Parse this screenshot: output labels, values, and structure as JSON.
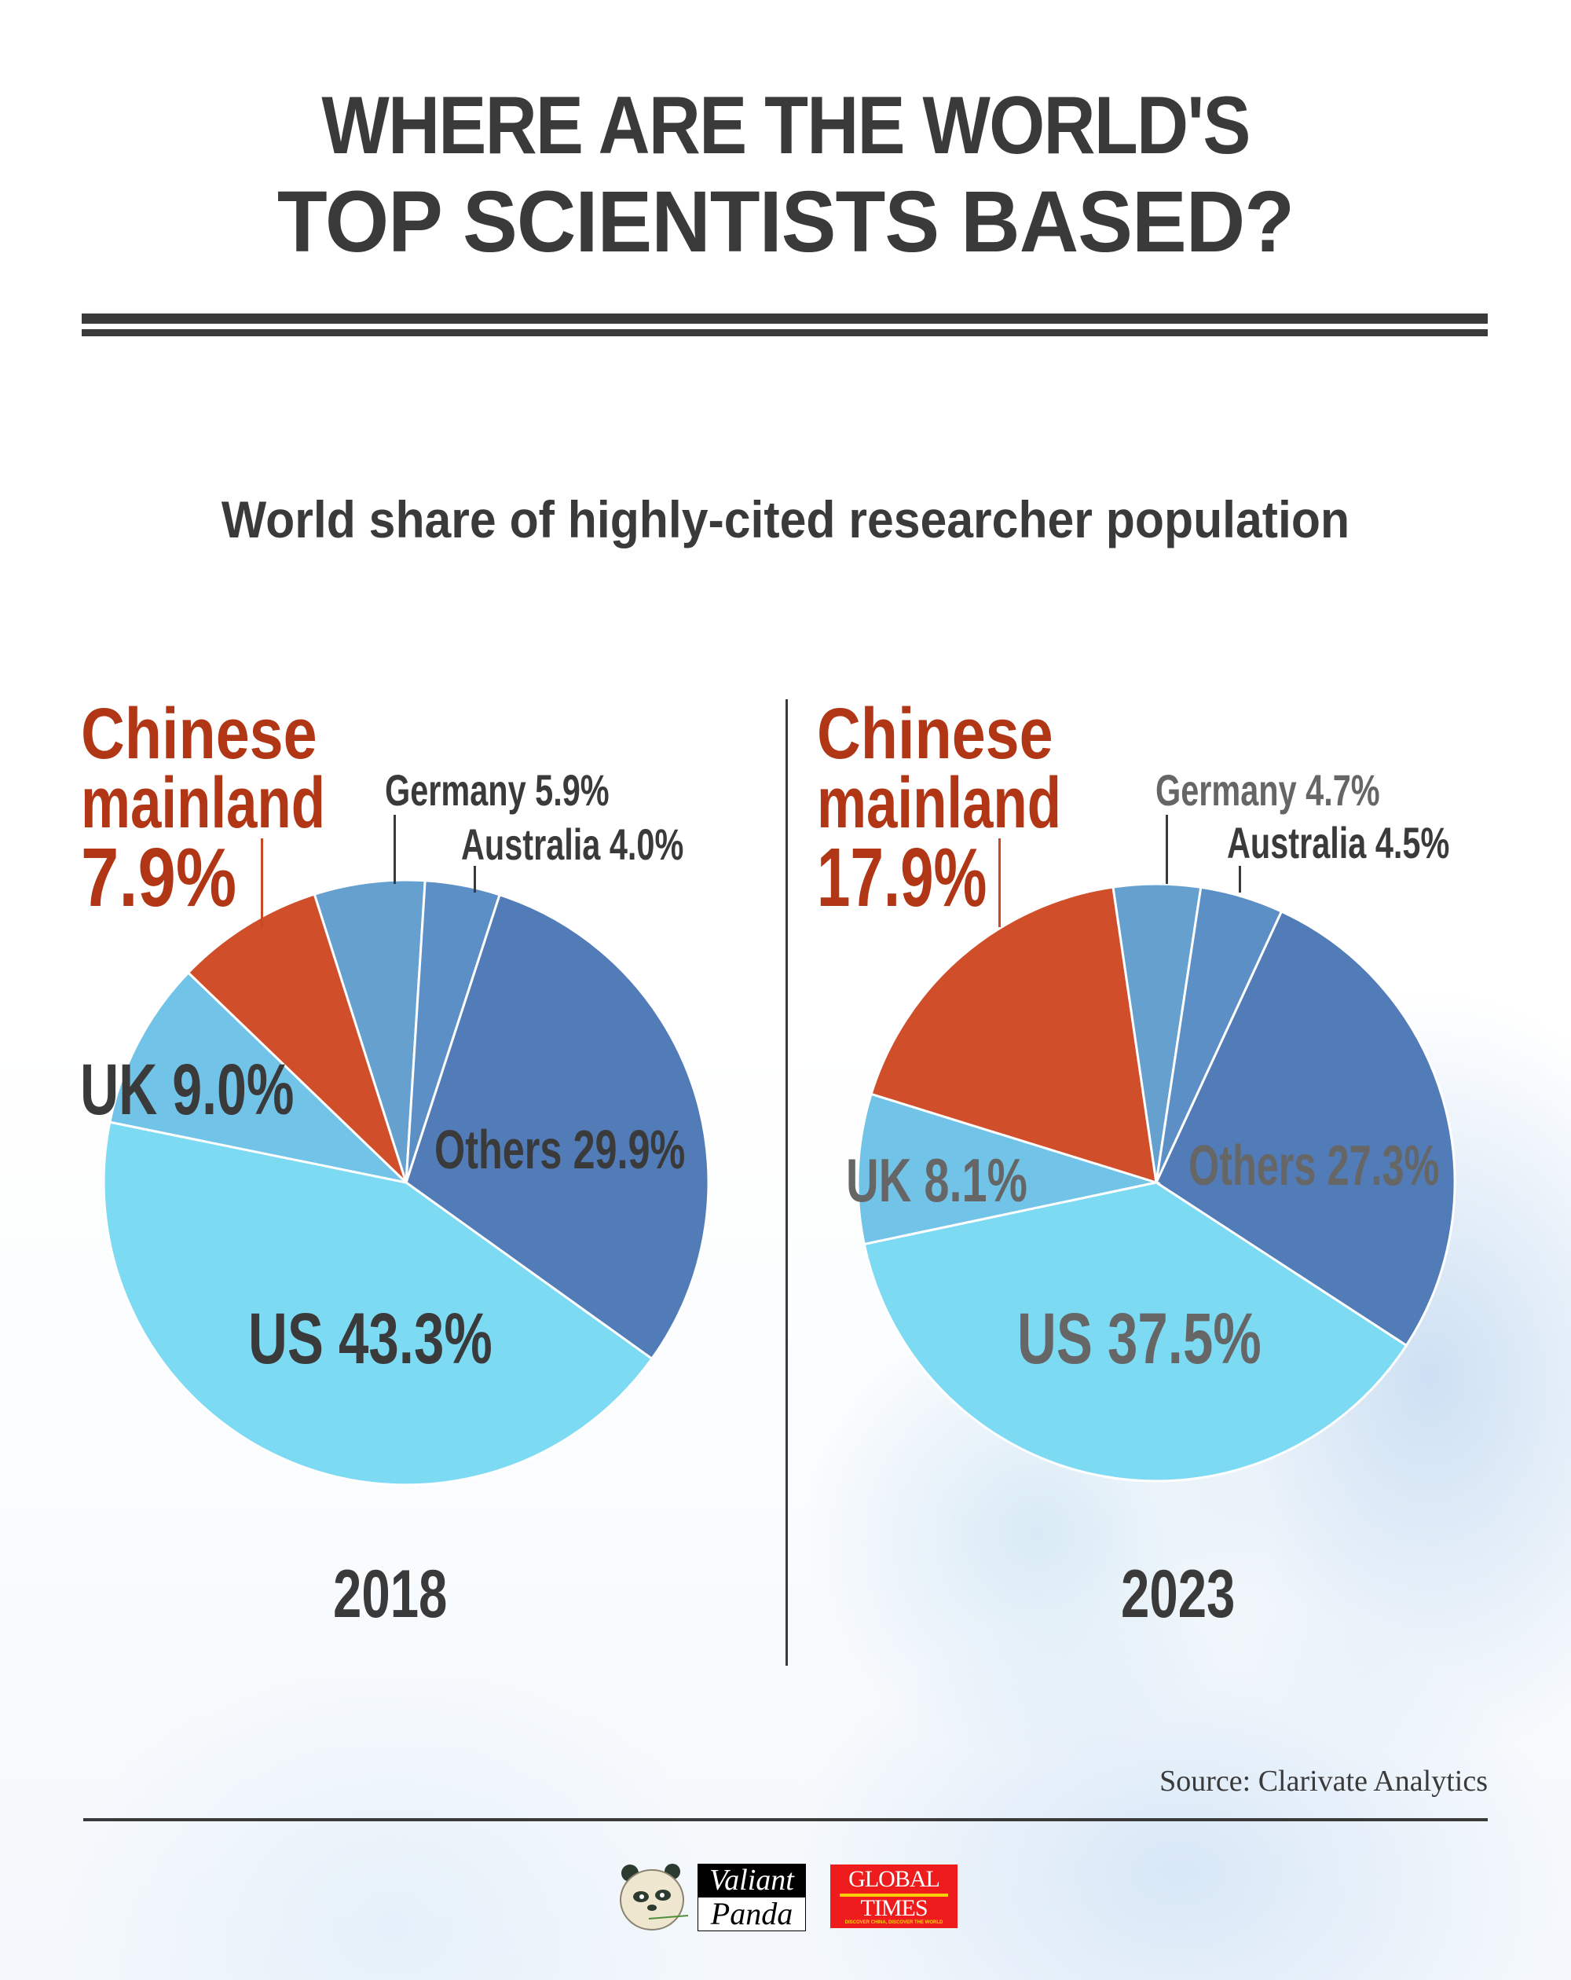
{
  "title": {
    "line1": "WHERE ARE THE WORLD'S",
    "line2": "TOP SCIENTISTS BASED?"
  },
  "subtitle": "World share of highly-cited researcher population",
  "source": "Source: Clarivate Analytics",
  "colors": {
    "text_dark": "#3a3a3a",
    "text_grey": "#666666",
    "accent_red_text": "#b13616",
    "china": "#d04f2a",
    "germany": "#65a0cf",
    "australia": "#5b8fc5",
    "others": "#527cb8",
    "us": "#7cdaf3",
    "uk": "#72c3e8"
  },
  "charts": [
    {
      "year": "2018",
      "labels": {
        "china_line1": "Chinese",
        "china_line2": "mainland",
        "china_value": "7.9%",
        "germany": "Germany  5.9%",
        "australia": "Australia  4.0%",
        "uk": "UK 9.0%",
        "others": "Others 29.9%",
        "us": "US 43.3%"
      }
    },
    {
      "year": "2023",
      "labels": {
        "china_line1": "Chinese",
        "china_line2": "mainland",
        "china_value": "17.9%",
        "germany": "Germany  4.7%",
        "australia": "Australia  4.5%",
        "uk": "UK 8.1%",
        "others": "Others 27.3%",
        "us": "US 37.5%"
      }
    }
  ],
  "logos": {
    "panda_top": "Valiant",
    "panda_bottom": "Panda",
    "gt_top": "GLOBAL",
    "gt_bottom": "TIMES",
    "gt_tagline": "DISCOVER CHINA, DISCOVER THE WORLD"
  },
  "chart_data": [
    {
      "type": "pie",
      "title": "World share of highly-cited researcher population",
      "subtitle": "2018",
      "categories": [
        "Others",
        "US",
        "UK",
        "Chinese mainland",
        "Germany",
        "Australia"
      ],
      "values": [
        29.9,
        43.3,
        9.0,
        7.9,
        5.9,
        4.0
      ],
      "unit": "%",
      "start_angle_deg": 18,
      "direction": "clockwise"
    },
    {
      "type": "pie",
      "title": "World share of highly-cited researcher population",
      "subtitle": "2023",
      "categories": [
        "Others",
        "US",
        "UK",
        "Chinese mainland",
        "Germany",
        "Australia"
      ],
      "values": [
        27.3,
        37.5,
        8.1,
        17.9,
        4.7,
        4.5
      ],
      "unit": "%",
      "start_angle_deg": 24.8,
      "direction": "clockwise"
    }
  ]
}
